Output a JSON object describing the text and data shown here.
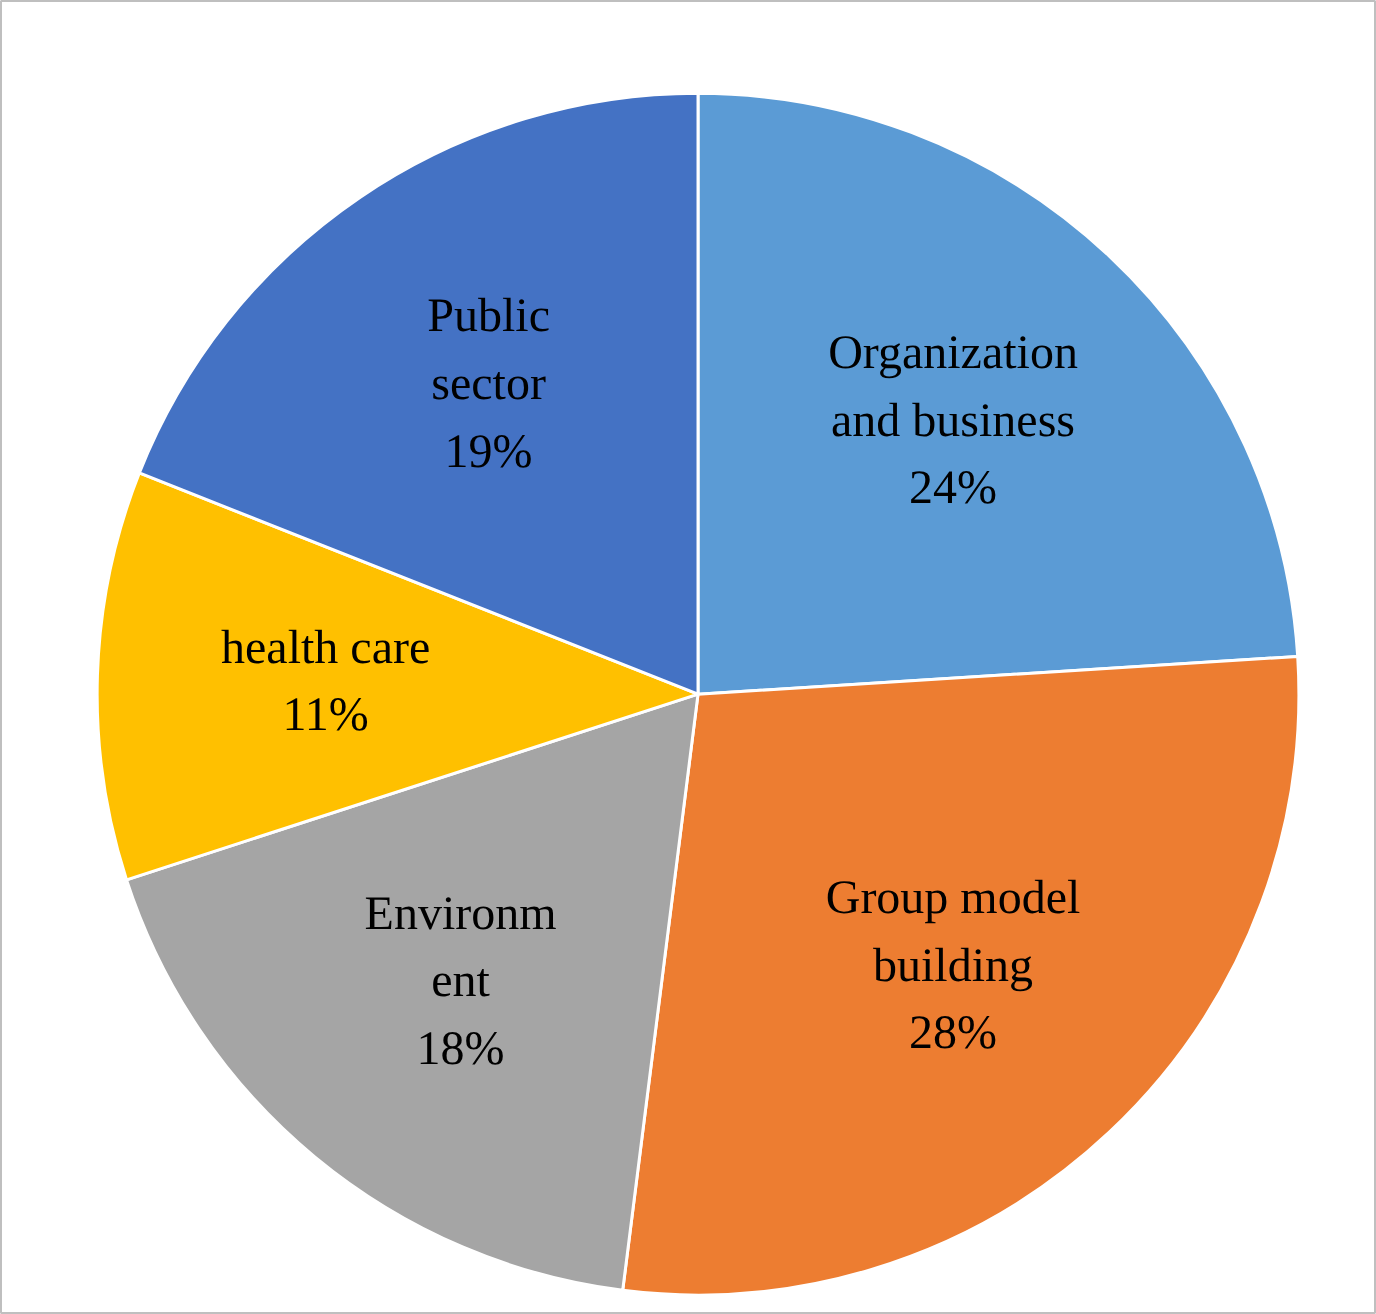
{
  "chart_data": {
    "type": "pie",
    "categories": [
      "Organization\nand business",
      "Group model\nbuilding",
      "Environm\nent",
      "health care",
      "Public\nsector"
    ],
    "values": [
      24,
      28,
      18,
      11,
      19
    ],
    "value_labels": [
      "24%",
      "28%",
      "18%",
      "11%",
      "19%"
    ],
    "colors": [
      "#5b9bd5",
      "#ed7d31",
      "#a5a5a5",
      "#ffc000",
      "#4472c4"
    ],
    "legend": false
  }
}
